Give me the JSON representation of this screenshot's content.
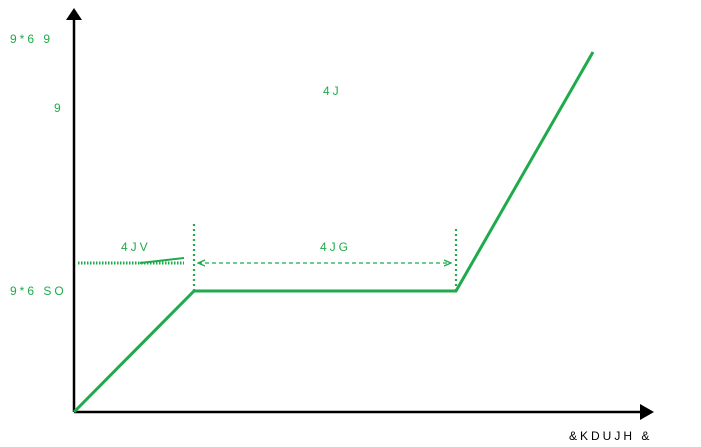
{
  "colors": {
    "curve": "#1faa4b",
    "label": "#1faa4b",
    "axis": "#000000"
  },
  "labels": {
    "y_axis_top": "9*6 9",
    "y_axis_sub": "9",
    "region_top": "4J",
    "region_left": "4JV",
    "region_mid": "4JG",
    "level_label": "9*6 SO",
    "x_axis": "&KDUJH &"
  }
}
